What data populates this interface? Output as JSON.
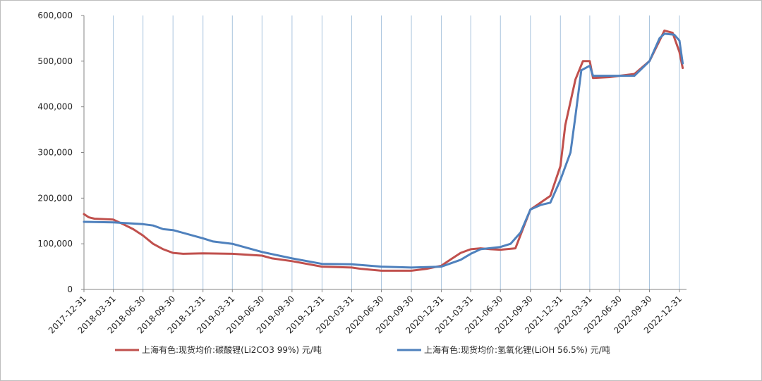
{
  "chart_data": {
    "type": "line",
    "title": "",
    "xlabel": "",
    "ylabel": "",
    "ylim": [
      0,
      600000
    ],
    "y_ticks": [
      {
        "value": 0,
        "label": "0"
      },
      {
        "value": 100000,
        "label": "100,000"
      },
      {
        "value": 200000,
        "label": "200,000"
      },
      {
        "value": 300000,
        "label": "300,000"
      },
      {
        "value": 400000,
        "label": "400,000"
      },
      {
        "value": 500000,
        "label": "500,000"
      },
      {
        "value": 600000,
        "label": "600,000"
      }
    ],
    "x_ticks": [
      "2017-12-31",
      "2018-03-31",
      "2018-06-30",
      "2018-09-30",
      "2018-12-31",
      "2019-03-31",
      "2019-06-30",
      "2019-09-30",
      "2019-12-31",
      "2020-03-31",
      "2020-06-30",
      "2020-09-30",
      "2020-12-31",
      "2021-03-31",
      "2021-06-30",
      "2021-09-30",
      "2021-12-31",
      "2022-03-31",
      "2022-06-30",
      "2022-09-30",
      "2022-12-31"
    ],
    "grid": "vertical",
    "legend_position": "bottom",
    "series": [
      {
        "name": "上海有色:现货均价:碳酸锂(Li2CO3 99%) 元/吨",
        "color": "#c0504d",
        "points": [
          [
            "2017-12-31",
            165000
          ],
          [
            "2018-01-15",
            158000
          ],
          [
            "2018-02-01",
            155000
          ],
          [
            "2018-03-31",
            153000
          ],
          [
            "2018-04-30",
            143000
          ],
          [
            "2018-05-31",
            132000
          ],
          [
            "2018-06-30",
            118000
          ],
          [
            "2018-07-31",
            100000
          ],
          [
            "2018-08-31",
            88000
          ],
          [
            "2018-09-30",
            80000
          ],
          [
            "2018-10-31",
            78000
          ],
          [
            "2018-12-31",
            79000
          ],
          [
            "2019-03-31",
            78000
          ],
          [
            "2019-06-30",
            74000
          ],
          [
            "2019-07-31",
            68000
          ],
          [
            "2019-09-30",
            62000
          ],
          [
            "2019-12-31",
            50000
          ],
          [
            "2020-03-31",
            48000
          ],
          [
            "2020-04-30",
            45000
          ],
          [
            "2020-06-30",
            41000
          ],
          [
            "2020-09-30",
            41000
          ],
          [
            "2020-11-15",
            45000
          ],
          [
            "2020-12-31",
            52000
          ],
          [
            "2021-01-31",
            67000
          ],
          [
            "2021-02-28",
            80000
          ],
          [
            "2021-03-31",
            88000
          ],
          [
            "2021-04-30",
            90000
          ],
          [
            "2021-05-31",
            88000
          ],
          [
            "2021-06-30",
            87000
          ],
          [
            "2021-08-15",
            90000
          ],
          [
            "2021-09-30",
            175000
          ],
          [
            "2021-10-31",
            190000
          ],
          [
            "2021-11-30",
            205000
          ],
          [
            "2021-12-31",
            270000
          ],
          [
            "2022-01-15",
            360000
          ],
          [
            "2022-02-15",
            460000
          ],
          [
            "2022-03-10",
            500000
          ],
          [
            "2022-03-31",
            500000
          ],
          [
            "2022-04-10",
            463000
          ],
          [
            "2022-05-31",
            465000
          ],
          [
            "2022-06-30",
            468000
          ],
          [
            "2022-08-15",
            472000
          ],
          [
            "2022-09-30",
            500000
          ],
          [
            "2022-10-31",
            545000
          ],
          [
            "2022-11-15",
            567000
          ],
          [
            "2022-12-10",
            562000
          ],
          [
            "2022-12-31",
            520000
          ],
          [
            "2023-01-10",
            485000
          ]
        ]
      },
      {
        "name": "上海有色:现货均价:氢氧化锂(LiOH 56.5%) 元/吨",
        "color": "#4f81bd",
        "points": [
          [
            "2017-12-31",
            148000
          ],
          [
            "2018-03-31",
            147000
          ],
          [
            "2018-06-30",
            143000
          ],
          [
            "2018-07-31",
            140000
          ],
          [
            "2018-08-31",
            132000
          ],
          [
            "2018-09-30",
            130000
          ],
          [
            "2018-12-31",
            112000
          ],
          [
            "2019-01-31",
            105000
          ],
          [
            "2019-03-31",
            100000
          ],
          [
            "2019-06-30",
            82000
          ],
          [
            "2019-09-30",
            68000
          ],
          [
            "2019-12-31",
            56000
          ],
          [
            "2020-03-31",
            55000
          ],
          [
            "2020-06-30",
            50000
          ],
          [
            "2020-09-30",
            48000
          ],
          [
            "2020-12-31",
            50000
          ],
          [
            "2021-02-28",
            65000
          ],
          [
            "2021-03-31",
            78000
          ],
          [
            "2021-04-30",
            88000
          ],
          [
            "2021-06-30",
            93000
          ],
          [
            "2021-07-31",
            100000
          ],
          [
            "2021-08-31",
            125000
          ],
          [
            "2021-09-30",
            175000
          ],
          [
            "2021-10-31",
            185000
          ],
          [
            "2021-11-30",
            190000
          ],
          [
            "2021-12-31",
            240000
          ],
          [
            "2022-01-31",
            300000
          ],
          [
            "2022-02-15",
            380000
          ],
          [
            "2022-03-05",
            480000
          ],
          [
            "2022-03-31",
            490000
          ],
          [
            "2022-04-10",
            468000
          ],
          [
            "2022-06-30",
            468000
          ],
          [
            "2022-08-15",
            468000
          ],
          [
            "2022-09-30",
            500000
          ],
          [
            "2022-10-31",
            550000
          ],
          [
            "2022-11-15",
            560000
          ],
          [
            "2022-12-15",
            558000
          ],
          [
            "2022-12-31",
            545000
          ],
          [
            "2023-01-10",
            495000
          ]
        ]
      }
    ]
  }
}
